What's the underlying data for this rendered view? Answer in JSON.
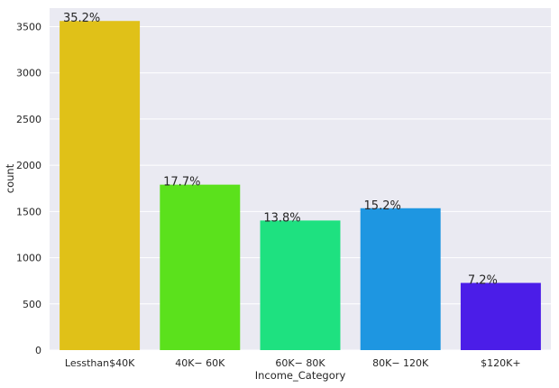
{
  "chart_data": {
    "type": "bar",
    "title": "",
    "xlabel": "Income_Category",
    "ylabel": "count",
    "categories": [
      "Lessthan$40K",
      "$40K - $60K",
      "$60K - $80K",
      "$80K - $120K",
      "$120K+"
    ],
    "category_labels": [
      "Lessthan$40K",
      "40K− 60K",
      "60K− 80K",
      "80K− 120K",
      "$120K+"
    ],
    "values": [
      3561,
      1790,
      1402,
      1535,
      727
    ],
    "percent_labels": [
      "35.2%",
      "17.7%",
      "13.8%",
      "15.2%",
      "7.2%"
    ],
    "colors": [
      "#e0c118",
      "#5be11c",
      "#1ee180",
      "#1e96e1",
      "#4b1de8"
    ],
    "ylim": [
      0,
      3700
    ],
    "yticks": [
      0,
      500,
      1000,
      1500,
      2000,
      2500,
      3000,
      3500
    ],
    "grid": true,
    "background": "#eaeaf2",
    "legend": "none"
  }
}
